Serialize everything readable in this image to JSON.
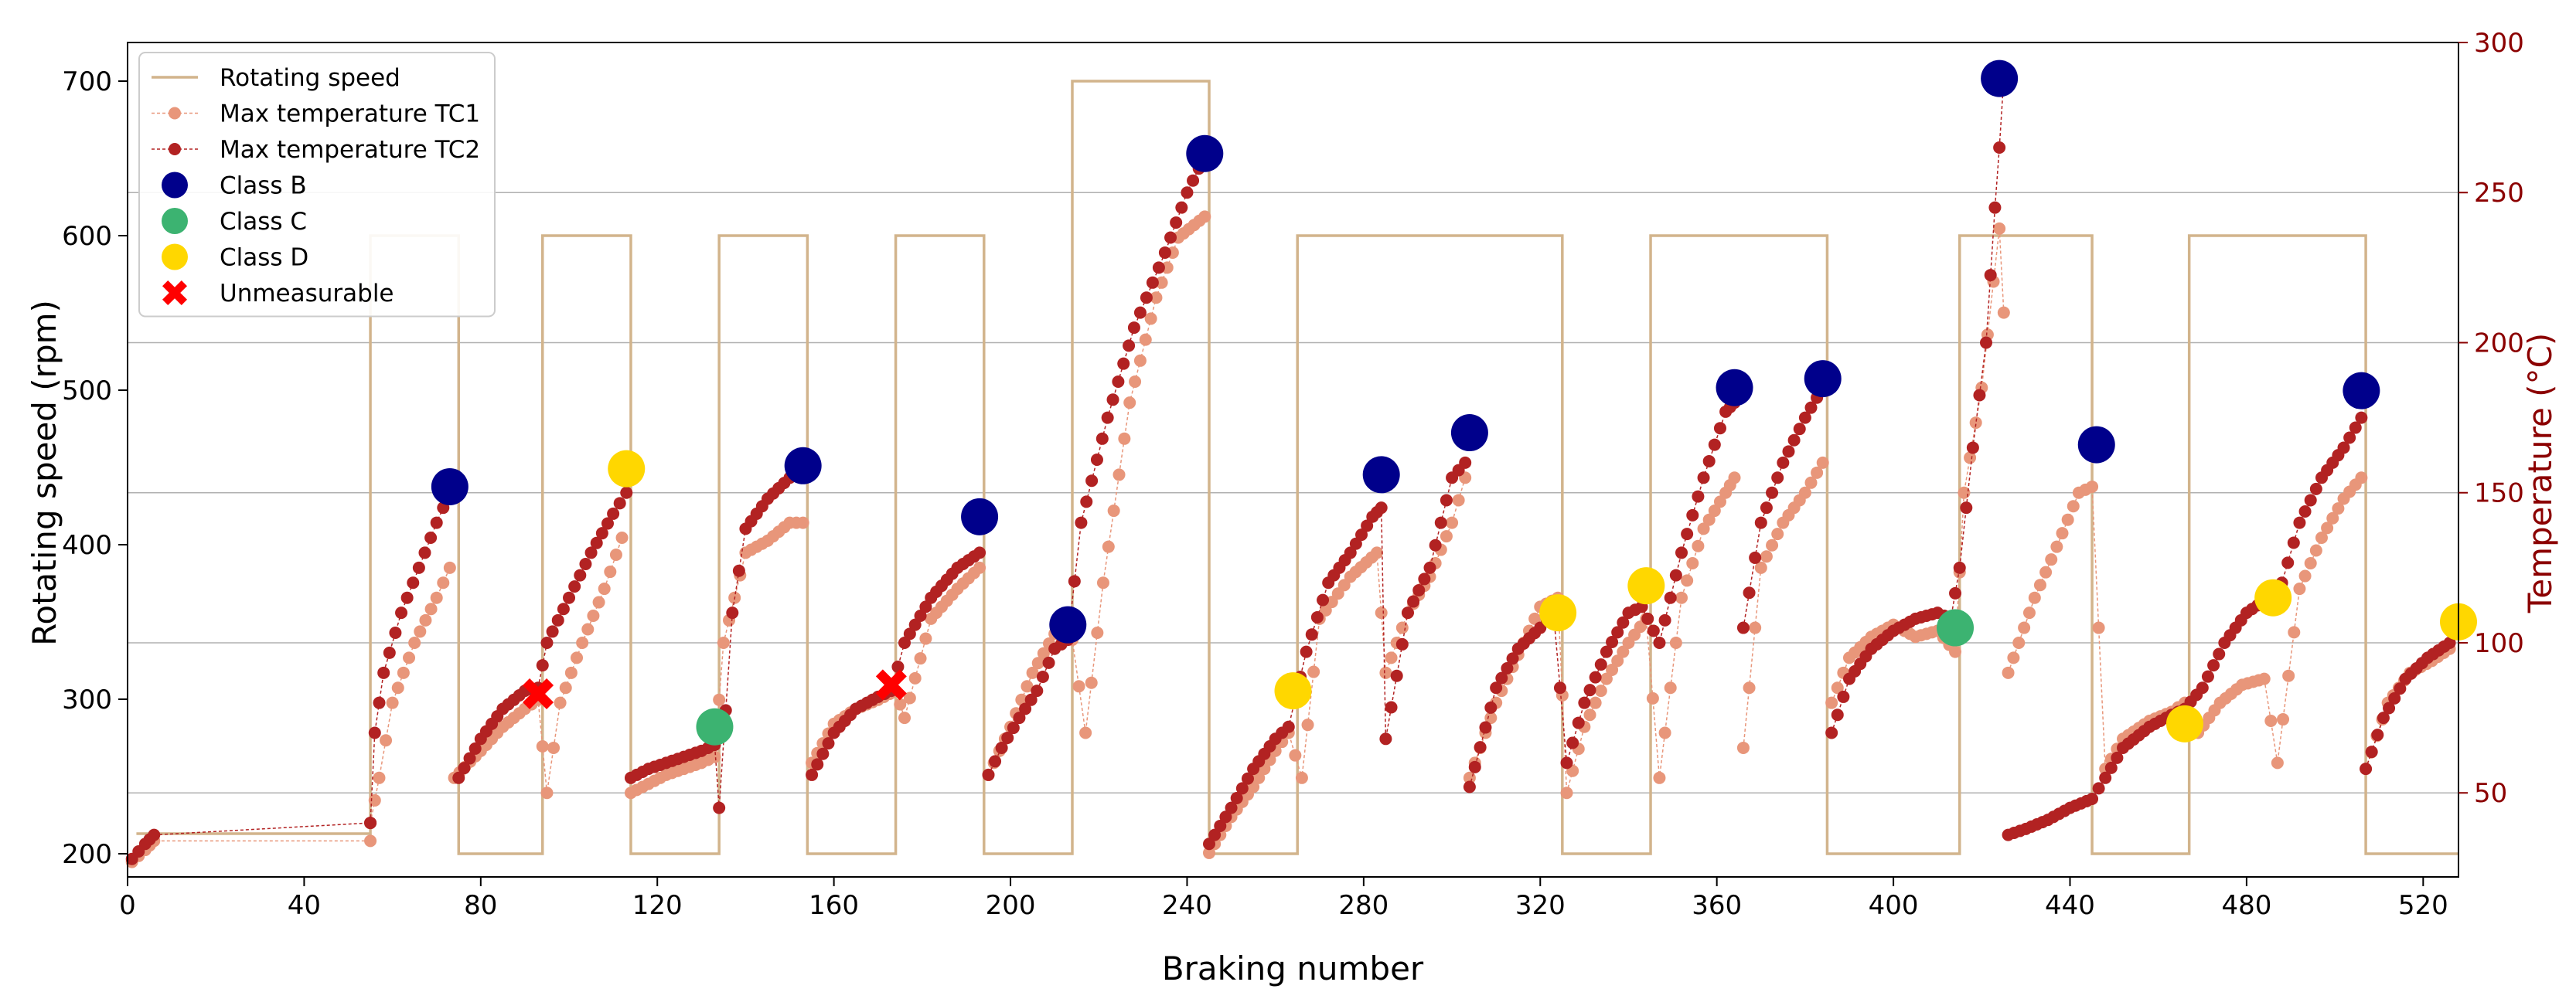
{
  "chart_data": {
    "type": "line",
    "title": "",
    "xlabel": "Braking number",
    "ylabel": "Rotating speed (rpm)",
    "y2label": "Temperature (°C)",
    "xlim": [
      0,
      528
    ],
    "ylim": [
      185,
      725
    ],
    "y2lim": [
      22,
      300
    ],
    "x_ticks": [
      0,
      40,
      80,
      120,
      160,
      200,
      240,
      280,
      320,
      360,
      400,
      440,
      480,
      520
    ],
    "y_ticks": [
      200,
      300,
      400,
      500,
      600,
      700
    ],
    "y2_ticks": [
      50,
      100,
      150,
      200,
      250,
      300
    ],
    "grid": "horizontal lines at right-axis ticks",
    "legend_position": "top-left",
    "colors": {
      "speed": "#d2b48c",
      "tc1": "#e8967a",
      "tc2": "#b22222",
      "class_b": "#00008b",
      "class_c": "#3cb371",
      "class_d": "#ffd700",
      "unmeasurable": "#ff0000",
      "right_axis": "#8b0000",
      "grid": "#b0b0b0"
    },
    "legend": [
      {
        "label": "Rotating speed",
        "key": "speed",
        "kind": "line"
      },
      {
        "label": "Max temperature TC1",
        "key": "tc1",
        "kind": "dotline"
      },
      {
        "label": "Max temperature TC2",
        "key": "tc2",
        "kind": "dotline"
      },
      {
        "label": "Class B",
        "key": "class_b",
        "kind": "circle"
      },
      {
        "label": "Class C",
        "key": "class_c",
        "kind": "circle"
      },
      {
        "label": "Class D",
        "key": "class_d",
        "kind": "circle"
      },
      {
        "label": "Unmeasurable",
        "key": "unmeasurable",
        "kind": "cross"
      }
    ],
    "rotating_speed": [
      [
        2,
        213
      ],
      [
        55,
        213
      ],
      [
        55,
        600
      ],
      [
        75,
        600
      ],
      [
        75,
        200
      ],
      [
        94,
        200
      ],
      [
        94,
        600
      ],
      [
        114,
        600
      ],
      [
        114,
        200
      ],
      [
        134,
        200
      ],
      [
        134,
        600
      ],
      [
        154,
        600
      ],
      [
        154,
        200
      ],
      [
        174,
        200
      ],
      [
        174,
        600
      ],
      [
        194,
        600
      ],
      [
        194,
        200
      ],
      [
        214,
        200
      ],
      [
        214,
        700
      ],
      [
        245,
        700
      ],
      [
        245,
        200
      ],
      [
        265,
        200
      ],
      [
        265,
        600
      ],
      [
        325,
        600
      ],
      [
        325,
        200
      ],
      [
        345,
        200
      ],
      [
        345,
        600
      ],
      [
        385,
        600
      ],
      [
        385,
        200
      ],
      [
        415,
        200
      ],
      [
        415,
        600
      ],
      [
        445,
        600
      ],
      [
        445,
        200
      ],
      [
        467,
        200
      ],
      [
        467,
        600
      ],
      [
        507,
        600
      ],
      [
        507,
        200
      ],
      [
        528,
        200
      ]
    ],
    "tc2_segments": [
      [
        [
          1,
          28
        ],
        [
          4,
          33
        ],
        [
          6,
          36
        ],
        [
          55,
          40
        ]
      ],
      [
        [
          55,
          40
        ],
        [
          56,
          70
        ],
        [
          58,
          90
        ],
        [
          62,
          110
        ],
        [
          66,
          125
        ],
        [
          70,
          140
        ],
        [
          73,
          150
        ]
      ],
      [
        [
          75,
          55
        ],
        [
          80,
          68
        ],
        [
          85,
          78
        ],
        [
          90,
          84
        ],
        [
          93,
          85
        ],
        [
          95,
          100
        ],
        [
          100,
          115
        ],
        [
          105,
          130
        ],
        [
          110,
          143
        ],
        [
          113,
          150
        ]
      ],
      [
        [
          114,
          55
        ],
        [
          118,
          58
        ],
        [
          122,
          60
        ],
        [
          126,
          62
        ],
        [
          130,
          64
        ],
        [
          133,
          66
        ],
        [
          134,
          45
        ],
        [
          137,
          110
        ],
        [
          140,
          138
        ],
        [
          145,
          148
        ],
        [
          150,
          155
        ],
        [
          153,
          157
        ]
      ],
      [
        [
          155,
          56
        ],
        [
          160,
          70
        ],
        [
          165,
          78
        ],
        [
          170,
          82
        ],
        [
          173,
          84
        ],
        [
          176,
          100
        ],
        [
          182,
          115
        ],
        [
          188,
          125
        ],
        [
          193,
          130
        ]
      ],
      [
        [
          195,
          56
        ],
        [
          198,
          65
        ],
        [
          202,
          75
        ],
        [
          206,
          84
        ],
        [
          210,
          98
        ],
        [
          213,
          101
        ],
        [
          216,
          140
        ],
        [
          222,
          175
        ],
        [
          228,
          205
        ],
        [
          235,
          230
        ],
        [
          240,
          250
        ],
        [
          244,
          262
        ]
      ],
      [
        [
          245,
          33
        ],
        [
          250,
          45
        ],
        [
          255,
          58
        ],
        [
          260,
          68
        ],
        [
          263,
          72
        ],
        [
          267,
          97
        ],
        [
          272,
          120
        ],
        [
          277,
          130
        ],
        [
          282,
          142
        ],
        [
          284,
          145
        ],
        [
          285,
          68
        ],
        [
          290,
          110
        ],
        [
          295,
          125
        ],
        [
          300,
          155
        ],
        [
          303,
          160
        ]
      ],
      [
        [
          304,
          52
        ],
        [
          310,
          85
        ],
        [
          315,
          98
        ],
        [
          320,
          105
        ],
        [
          323,
          110
        ],
        [
          326,
          60
        ],
        [
          330,
          80
        ],
        [
          335,
          97
        ],
        [
          340,
          110
        ],
        [
          343,
          112
        ],
        [
          347,
          100
        ],
        [
          352,
          130
        ],
        [
          357,
          155
        ],
        [
          362,
          177
        ],
        [
          364,
          180
        ]
      ],
      [
        [
          366,
          105
        ],
        [
          370,
          140
        ],
        [
          375,
          160
        ],
        [
          380,
          175
        ],
        [
          384,
          185
        ]
      ],
      [
        [
          386,
          70
        ],
        [
          390,
          88
        ],
        [
          395,
          98
        ],
        [
          400,
          104
        ],
        [
          405,
          108
        ],
        [
          410,
          110
        ],
        [
          413,
          108
        ],
        [
          415,
          125
        ],
        [
          418,
          165
        ],
        [
          421,
          200
        ],
        [
          423,
          245
        ],
        [
          424,
          265
        ],
        [
          425,
          288
        ]
      ],
      [
        [
          426,
          36
        ],
        [
          430,
          38
        ],
        [
          435,
          41
        ],
        [
          440,
          45
        ],
        [
          445,
          48
        ],
        [
          448,
          55
        ],
        [
          452,
          65
        ],
        [
          458,
          72
        ],
        [
          463,
          76
        ],
        [
          466,
          78
        ],
        [
          470,
          85
        ],
        [
          475,
          100
        ],
        [
          480,
          110
        ],
        [
          485,
          115
        ],
        [
          488,
          120
        ],
        [
          492,
          140
        ],
        [
          497,
          155
        ],
        [
          502,
          165
        ],
        [
          506,
          175
        ]
      ],
      [
        [
          507,
          58
        ],
        [
          511,
          75
        ],
        [
          516,
          88
        ],
        [
          521,
          95
        ],
        [
          526,
          100
        ]
      ]
    ],
    "tc1_segments": [
      [
        [
          1,
          27
        ],
        [
          4,
          31
        ],
        [
          6,
          34
        ],
        [
          55,
          34
        ]
      ],
      [
        [
          55,
          40
        ],
        [
          57,
          55
        ],
        [
          60,
          80
        ],
        [
          65,
          100
        ],
        [
          70,
          115
        ],
        [
          73,
          125
        ]
      ],
      [
        [
          74,
          55
        ],
        [
          80,
          64
        ],
        [
          85,
          72
        ],
        [
          90,
          78
        ],
        [
          93,
          81
        ],
        [
          95,
          50
        ],
        [
          98,
          80
        ],
        [
          103,
          100
        ],
        [
          108,
          118
        ],
        [
          112,
          135
        ]
      ],
      [
        [
          114,
          50
        ],
        [
          118,
          53
        ],
        [
          122,
          56
        ],
        [
          126,
          58
        ],
        [
          130,
          60
        ],
        [
          133,
          62
        ],
        [
          135,
          100
        ],
        [
          140,
          130
        ],
        [
          145,
          134
        ],
        [
          150,
          140
        ],
        [
          153,
          140
        ]
      ],
      [
        [
          155,
          60
        ],
        [
          160,
          73
        ],
        [
          165,
          78
        ],
        [
          170,
          81
        ],
        [
          174,
          84
        ],
        [
          176,
          75
        ],
        [
          182,
          108
        ],
        [
          188,
          118
        ],
        [
          193,
          125
        ]
      ],
      [
        [
          195,
          56
        ],
        [
          200,
          72
        ],
        [
          205,
          90
        ],
        [
          210,
          103
        ],
        [
          214,
          101
        ],
        [
          217,
          70
        ],
        [
          221,
          120
        ],
        [
          227,
          180
        ],
        [
          233,
          215
        ],
        [
          238,
          235
        ],
        [
          244,
          242
        ]
      ],
      [
        [
          245,
          30
        ],
        [
          250,
          42
        ],
        [
          255,
          52
        ],
        [
          260,
          64
        ],
        [
          263,
          70
        ],
        [
          266,
          55
        ],
        [
          270,
          108
        ],
        [
          277,
          122
        ],
        [
          283,
          130
        ],
        [
          285,
          90
        ],
        [
          290,
          110
        ],
        [
          295,
          122
        ],
        [
          300,
          140
        ],
        [
          303,
          155
        ]
      ],
      [
        [
          304,
          55
        ],
        [
          310,
          80
        ],
        [
          315,
          96
        ],
        [
          320,
          112
        ],
        [
          324,
          115
        ],
        [
          326,
          50
        ],
        [
          330,
          72
        ],
        [
          335,
          88
        ],
        [
          340,
          100
        ],
        [
          344,
          108
        ],
        [
          347,
          55
        ],
        [
          352,
          115
        ],
        [
          357,
          138
        ],
        [
          362,
          150
        ],
        [
          364,
          155
        ]
      ],
      [
        [
          366,
          65
        ],
        [
          370,
          125
        ],
        [
          375,
          140
        ],
        [
          380,
          150
        ],
        [
          384,
          160
        ]
      ],
      [
        [
          386,
          80
        ],
        [
          390,
          95
        ],
        [
          395,
          102
        ],
        [
          400,
          106
        ],
        [
          405,
          102
        ],
        [
          410,
          104
        ],
        [
          414,
          97
        ],
        [
          416,
          150
        ],
        [
          420,
          185
        ],
        [
          424,
          238
        ],
        [
          425,
          210
        ]
      ],
      [
        [
          426,
          90
        ],
        [
          432,
          115
        ],
        [
          437,
          132
        ],
        [
          442,
          150
        ],
        [
          445,
          152
        ],
        [
          448,
          58
        ],
        [
          452,
          68
        ],
        [
          458,
          74
        ],
        [
          463,
          77
        ],
        [
          466,
          80
        ],
        [
          469,
          70
        ],
        [
          474,
          80
        ],
        [
          479,
          86
        ],
        [
          484,
          88
        ],
        [
          487,
          60
        ],
        [
          492,
          118
        ],
        [
          497,
          135
        ],
        [
          502,
          148
        ],
        [
          506,
          155
        ]
      ],
      [
        [
          507,
          58
        ],
        [
          512,
          80
        ],
        [
          517,
          90
        ],
        [
          522,
          94
        ],
        [
          526,
          98
        ]
      ]
    ],
    "markers": [
      {
        "cls": "B",
        "x": 73,
        "y": 152
      },
      {
        "cls": "X",
        "x": 93,
        "y": 83
      },
      {
        "cls": "D",
        "x": 113,
        "y": 158
      },
      {
        "cls": "C",
        "x": 133,
        "y": 72
      },
      {
        "cls": "B",
        "x": 153,
        "y": 159
      },
      {
        "cls": "X",
        "x": 173,
        "y": 86
      },
      {
        "cls": "B",
        "x": 193,
        "y": 142
      },
      {
        "cls": "B",
        "x": 213,
        "y": 106
      },
      {
        "cls": "B",
        "x": 244,
        "y": 263
      },
      {
        "cls": "D",
        "x": 264,
        "y": 84
      },
      {
        "cls": "B",
        "x": 284,
        "y": 156
      },
      {
        "cls": "B",
        "x": 304,
        "y": 170
      },
      {
        "cls": "D",
        "x": 324,
        "y": 110
      },
      {
        "cls": "D",
        "x": 344,
        "y": 119
      },
      {
        "cls": "B",
        "x": 364,
        "y": 185
      },
      {
        "cls": "B",
        "x": 384,
        "y": 188
      },
      {
        "cls": "C",
        "x": 414,
        "y": 105
      },
      {
        "cls": "B",
        "x": 424,
        "y": 288
      },
      {
        "cls": "B",
        "x": 446,
        "y": 166
      },
      {
        "cls": "D",
        "x": 466,
        "y": 73
      },
      {
        "cls": "D",
        "x": 486,
        "y": 115
      },
      {
        "cls": "B",
        "x": 506,
        "y": 184
      },
      {
        "cls": "D",
        "x": 528,
        "y": 107
      }
    ]
  }
}
